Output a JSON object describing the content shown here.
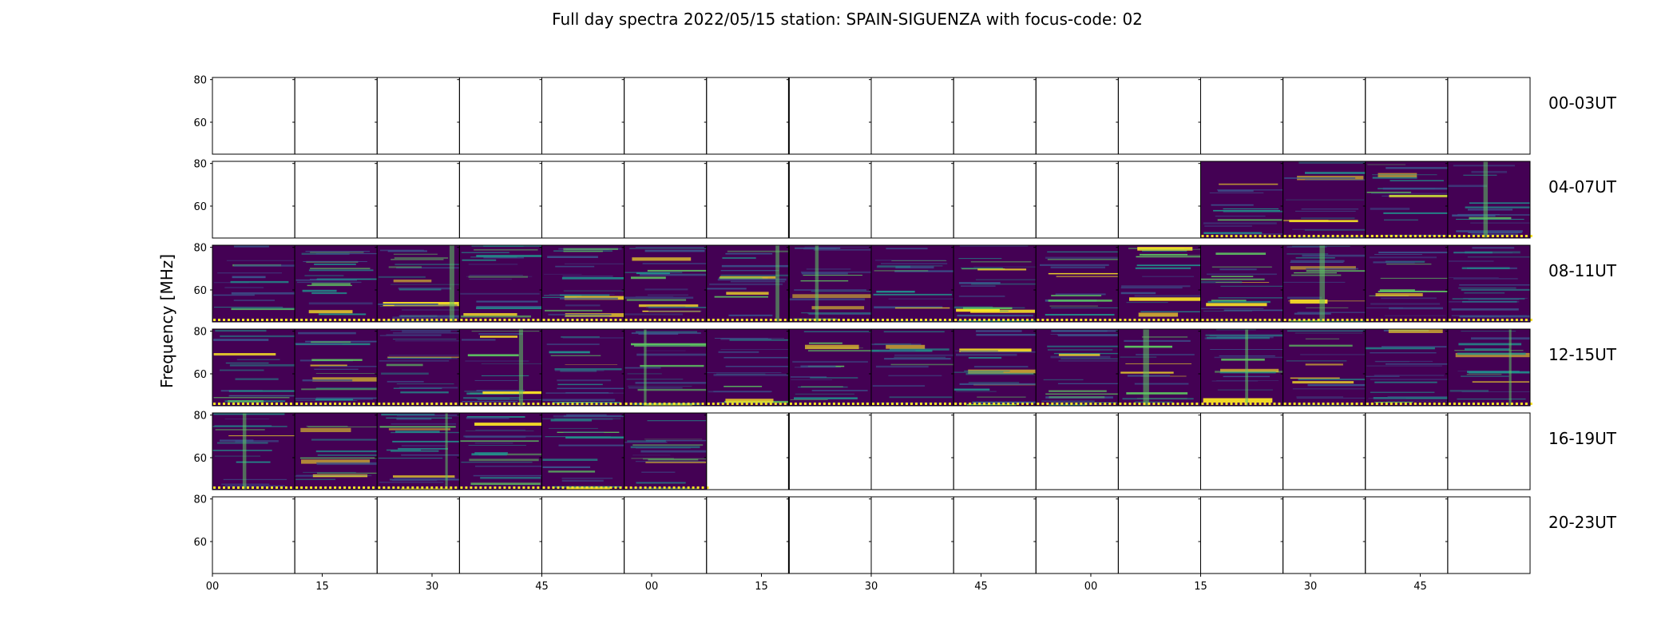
{
  "chart_data": {
    "type": "heatmap",
    "title": "Full day spectra 2022/05/15 station: SPAIN-SIGUENZA with focus-code: 02",
    "ylabel": "Frequency [MHz]",
    "xlabel": "",
    "ylim": [
      45,
      81
    ],
    "yticks": [
      "80",
      "60"
    ],
    "yticks_values": [
      80,
      60
    ],
    "xticks": [
      "00",
      "15",
      "30",
      "45",
      "00",
      "15",
      "30",
      "45",
      "00",
      "15",
      "30",
      "45"
    ],
    "panels_per_row": 16,
    "grid": false,
    "colormap": [
      "#440154",
      "#3b528b",
      "#21918c",
      "#5ec962",
      "#fde725"
    ],
    "rows": [
      {
        "label": "00-03UT",
        "filled": []
      },
      {
        "label": "04-07UT",
        "filled": [
          12,
          13,
          14,
          15
        ]
      },
      {
        "label": "08-11UT",
        "filled": [
          0,
          1,
          2,
          3,
          4,
          5,
          6,
          7,
          8,
          9,
          10,
          11,
          12,
          13,
          14,
          15
        ]
      },
      {
        "label": "12-15UT",
        "filled": [
          0,
          1,
          2,
          3,
          4,
          5,
          6,
          7,
          8,
          9,
          10,
          11,
          12,
          13,
          14,
          15
        ]
      },
      {
        "label": "16-19UT",
        "filled": [
          0,
          1,
          2,
          3,
          4,
          5
        ]
      },
      {
        "label": "20-23UT",
        "filled": []
      }
    ]
  }
}
